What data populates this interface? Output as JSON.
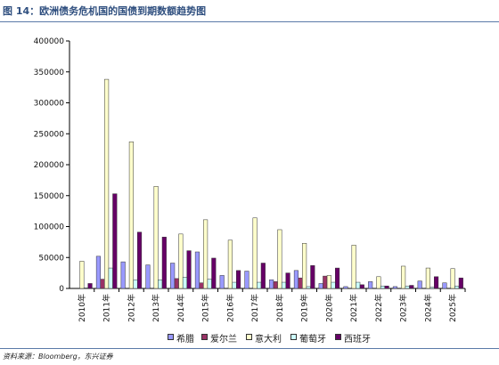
{
  "title": "图 14：欧洲债务危机国的国债到期数额趋势图",
  "source": "资料来源：Bloomberg，东兴证券",
  "chart_data": {
    "type": "bar",
    "categories": [
      "2010年",
      "2011年",
      "2012年",
      "2013年",
      "2014年",
      "2015年",
      "2016年",
      "2017年",
      "2018年",
      "2019年",
      "2020年",
      "2021年",
      "2022年",
      "2023年",
      "2024年",
      "2025年"
    ],
    "ylim": [
      0,
      400000
    ],
    "yticks": [
      0,
      50000,
      100000,
      150000,
      200000,
      250000,
      300000,
      350000,
      400000
    ],
    "grid": false,
    "legend_position": "bottom",
    "series": [
      {
        "name": "希腊",
        "color": "#9999ff",
        "values": [
          0,
          52000,
          43000,
          38000,
          41000,
          59000,
          21000,
          28000,
          14000,
          29000,
          8000,
          3000,
          11000,
          3000,
          12000,
          9000
        ]
      },
      {
        "name": "爱尔兰",
        "color": "#993366",
        "values": [
          0,
          15000,
          0,
          0,
          16000,
          9000,
          0,
          0,
          11000,
          17000,
          20000,
          0,
          0,
          0,
          0,
          0
        ]
      },
      {
        "name": "意大利",
        "color": "#ffffcc",
        "values": [
          44000,
          338000,
          237000,
          165000,
          88000,
          111000,
          78000,
          114000,
          95000,
          73000,
          21000,
          70000,
          19000,
          36000,
          33000,
          32000
        ]
      },
      {
        "name": "葡萄牙",
        "color": "#ccffff",
        "values": [
          1000,
          33000,
          14000,
          14000,
          18000,
          15000,
          10000,
          10000,
          10000,
          3000,
          10000,
          10000,
          4000,
          4000,
          2000,
          4000
        ]
      },
      {
        "name": "西班牙",
        "color": "#660066",
        "values": [
          8000,
          153000,
          91000,
          83000,
          61000,
          49000,
          29000,
          41000,
          25000,
          37000,
          33000,
          6000,
          4000,
          5000,
          19000,
          17000
        ]
      }
    ]
  }
}
